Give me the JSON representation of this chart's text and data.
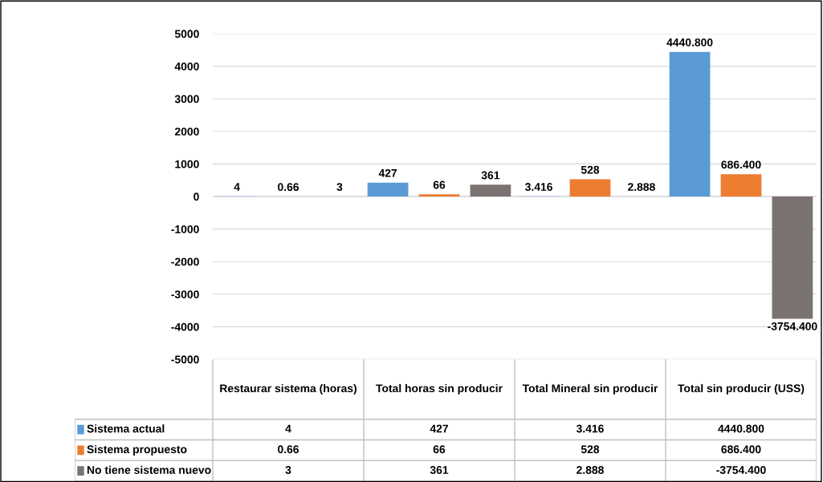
{
  "chart_data": {
    "type": "bar",
    "categories": [
      "Restaurar sistema (horas)",
      "Total horas sin producir",
      "Total Mineral sin producir",
      "Total sin producir (USS)"
    ],
    "series": [
      {
        "name": "Sistema actual",
        "color": "#5b9bd5",
        "values": [
          4,
          427,
          3.416,
          4440.8
        ],
        "value_labels": [
          "4",
          "427",
          "3.416",
          "4440.800"
        ]
      },
      {
        "name": "Sistema propuesto",
        "color": "#ed7d31",
        "values": [
          0.66,
          66,
          528,
          686.4
        ],
        "value_labels": [
          "0.66",
          "66",
          "528",
          "686.400"
        ]
      },
      {
        "name": "No tiene sistema nuevo",
        "color": "#7b7371",
        "values": [
          3,
          361,
          2.888,
          -3754.4
        ],
        "value_labels": [
          "3",
          "361",
          "2.888",
          "-3754.400"
        ]
      }
    ],
    "ylim": [
      -5000,
      5000
    ],
    "yticks": [
      -5000,
      -4000,
      -3000,
      -2000,
      -1000,
      0,
      1000,
      2000,
      3000,
      4000,
      5000
    ],
    "grid": "y",
    "legend": "bottom"
  }
}
